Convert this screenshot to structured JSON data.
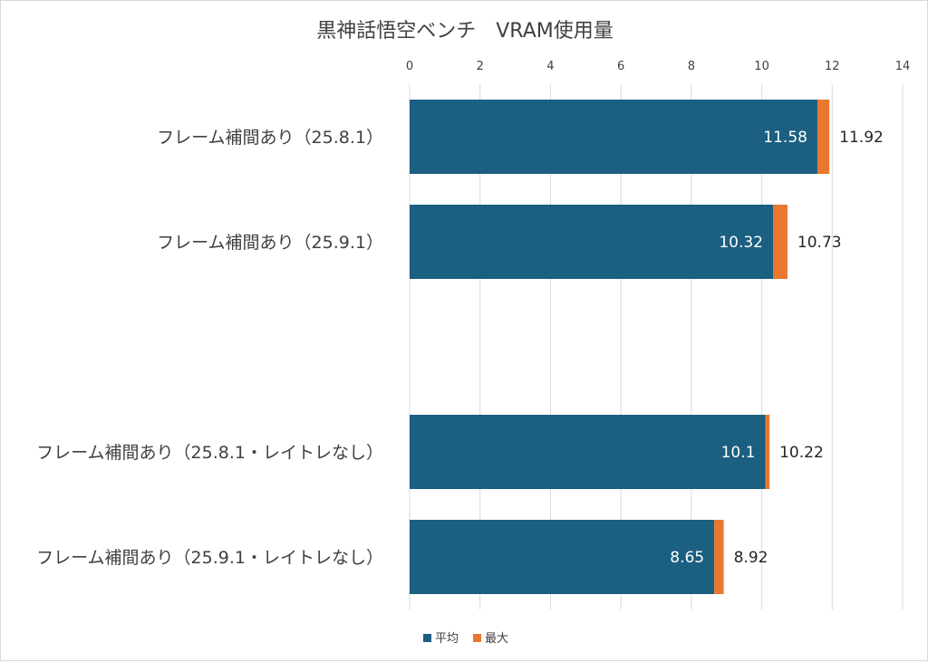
{
  "chart_data": {
    "type": "bar",
    "orientation": "horizontal",
    "stacked": true,
    "title": "黒神話悟空ベンチ　VRAM使用量",
    "xlim": [
      0,
      14
    ],
    "x_ticks": [
      "0",
      "2",
      "4",
      "6",
      "8",
      "10",
      "12",
      "14"
    ],
    "x_axis_position": "top",
    "grid": true,
    "legend": "bottom",
    "categories": [
      "フレーム補間あり（25.8.1）",
      "フレーム補間あり（25.9.1）",
      "",
      "フレーム補間あり（25.8.1・レイトレなし）",
      "フレーム補間あり（25.9.1・レイトレなし）"
    ],
    "series": [
      {
        "name": "平均",
        "color": "#1b5f81",
        "values": [
          11.58,
          10.32,
          null,
          10.1,
          8.65
        ],
        "labels": [
          "11.58",
          "10.32",
          "",
          "10.1",
          "8.65"
        ]
      },
      {
        "name": "最大",
        "color": "#e9772f",
        "totals": [
          11.92,
          10.73,
          null,
          10.22,
          8.92
        ],
        "labels": [
          "11.92",
          "10.73",
          "",
          "10.22",
          "8.92"
        ]
      }
    ]
  }
}
